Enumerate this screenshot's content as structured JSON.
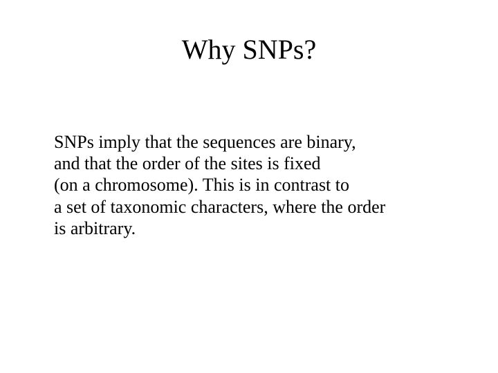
{
  "slide": {
    "title": "Why SNPs?",
    "body_lines": [
      "SNPs imply that the sequences are binary,",
      "and that the order of the sites is fixed",
      "(on a chromosome).  This is in contrast to",
      "a set of taxonomic characters, where the order",
      "is arbitrary."
    ],
    "title_fontsize": 40,
    "body_fontsize": 26,
    "font_family": "Times New Roman",
    "text_color": "#000000",
    "background_color": "#ffffff"
  }
}
